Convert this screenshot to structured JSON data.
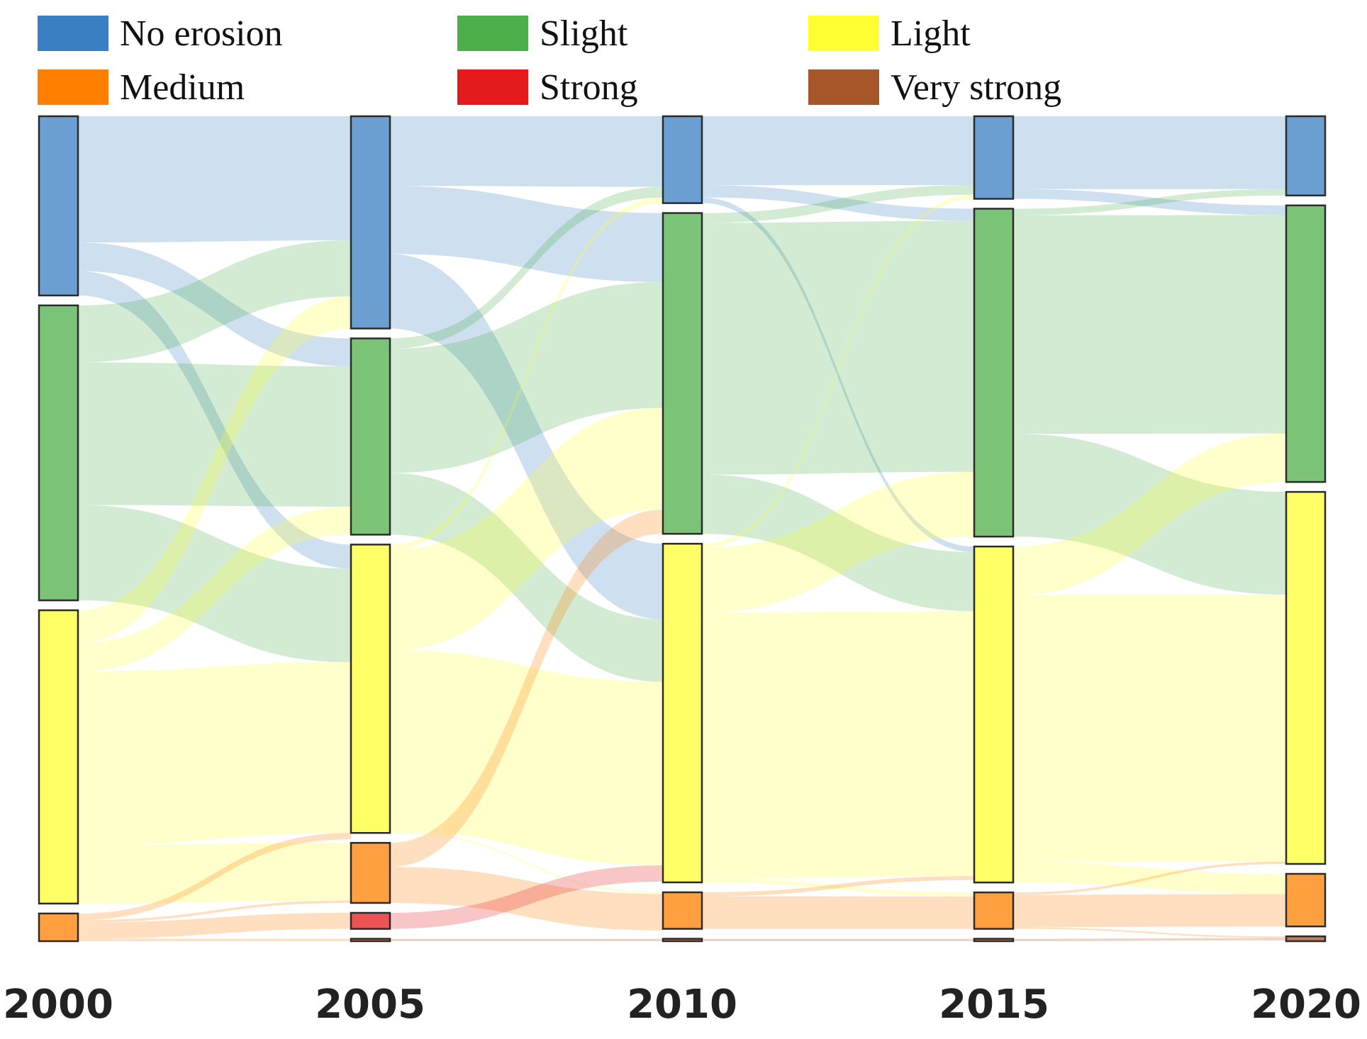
{
  "chart_data": {
    "type": "sankey",
    "title": "",
    "unit": "relative share (%)",
    "categories": [
      "No erosion",
      "Slight",
      "Light",
      "Medium",
      "Strong",
      "Very strong"
    ],
    "colors": {
      "No erosion": "#3a7fc1",
      "Slight": "#4daf4a",
      "Light": "#ffff33",
      "Medium": "#ff7f00",
      "Strong": "#e41a1c",
      "Very strong": "#a65628"
    },
    "years": [
      "2000",
      "2005",
      "2010",
      "2015",
      "2020"
    ],
    "nodes": [
      {
        "year": "2000",
        "values": {
          "No erosion": 22.0,
          "Slight": 36.2,
          "Light": 36.0,
          "Medium": 3.4,
          "Strong": 0.0,
          "Very strong": 0.0
        }
      },
      {
        "year": "2005",
        "values": {
          "No erosion": 26.5,
          "Slight": 24.5,
          "Light": 36.0,
          "Medium": 7.5,
          "Strong": 2.0,
          "Very strong": 0.3
        }
      },
      {
        "year": "2010",
        "values": {
          "No erosion": 10.7,
          "Slight": 39.5,
          "Light": 41.7,
          "Medium": 4.5,
          "Strong": 0.0,
          "Very strong": 0.3
        }
      },
      {
        "year": "2015",
        "values": {
          "No erosion": 10.2,
          "Slight": 40.5,
          "Light": 41.5,
          "Medium": 4.5,
          "Strong": 0.0,
          "Very strong": 0.3
        }
      },
      {
        "year": "2020",
        "values": {
          "No erosion": 9.8,
          "Slight": 34.2,
          "Light": 46.0,
          "Medium": 6.5,
          "Strong": 0.0,
          "Very strong": 0.6
        }
      }
    ],
    "flows": [
      [
        {
          "from": "No erosion",
          "to": "No erosion",
          "value": 15.5
        },
        {
          "from": "No erosion",
          "to": "Slight",
          "value": 3.5
        },
        {
          "from": "No erosion",
          "to": "Light",
          "value": 3.0
        },
        {
          "from": "Slight",
          "to": "No erosion",
          "value": 7.0
        },
        {
          "from": "Slight",
          "to": "Slight",
          "value": 17.5
        },
        {
          "from": "Slight",
          "to": "Light",
          "value": 11.7
        },
        {
          "from": "Light",
          "to": "No erosion",
          "value": 4.0
        },
        {
          "from": "Light",
          "to": "Slight",
          "value": 3.5
        },
        {
          "from": "Light",
          "to": "Light",
          "value": 21.3
        },
        {
          "from": "Light",
          "to": "Medium",
          "value": 7.2
        },
        {
          "from": "Medium",
          "to": "Medium",
          "value": 0.3
        },
        {
          "from": "Medium",
          "to": "Strong",
          "value": 2.0
        },
        {
          "from": "Medium",
          "to": "Light",
          "value": 0.8
        },
        {
          "from": "Medium",
          "to": "Very strong",
          "value": 0.3
        }
      ],
      [
        {
          "from": "No erosion",
          "to": "No erosion",
          "value": 8.7
        },
        {
          "from": "No erosion",
          "to": "Slight",
          "value": 8.5
        },
        {
          "from": "No erosion",
          "to": "Light",
          "value": 9.3
        },
        {
          "from": "Slight",
          "to": "No erosion",
          "value": 1.3
        },
        {
          "from": "Slight",
          "to": "Slight",
          "value": 15.5
        },
        {
          "from": "Slight",
          "to": "Light",
          "value": 7.7
        },
        {
          "from": "Light",
          "to": "No erosion",
          "value": 0.7
        },
        {
          "from": "Light",
          "to": "Slight",
          "value": 12.5
        },
        {
          "from": "Light",
          "to": "Light",
          "value": 22.6
        },
        {
          "from": "Light",
          "to": "Medium",
          "value": 0.2
        },
        {
          "from": "Medium",
          "to": "Slight",
          "value": 3.0
        },
        {
          "from": "Medium",
          "to": "Medium",
          "value": 4.5
        },
        {
          "from": "Strong",
          "to": "Light",
          "value": 2.0
        },
        {
          "from": "Very strong",
          "to": "Very strong",
          "value": 0.3
        }
      ],
      [
        {
          "from": "No erosion",
          "to": "No erosion",
          "value": 8.5
        },
        {
          "from": "No erosion",
          "to": "Slight",
          "value": 1.5
        },
        {
          "from": "No erosion",
          "to": "Light",
          "value": 0.7
        },
        {
          "from": "Slight",
          "to": "No erosion",
          "value": 1.2
        },
        {
          "from": "Slight",
          "to": "Slight",
          "value": 31.0
        },
        {
          "from": "Slight",
          "to": "Light",
          "value": 7.3
        },
        {
          "from": "Light",
          "to": "No erosion",
          "value": 0.5
        },
        {
          "from": "Light",
          "to": "Slight",
          "value": 8.0
        },
        {
          "from": "Light",
          "to": "Light",
          "value": 32.7
        },
        {
          "from": "Light",
          "to": "Medium",
          "value": 0.5
        },
        {
          "from": "Medium",
          "to": "Light",
          "value": 0.5
        },
        {
          "from": "Medium",
          "to": "Medium",
          "value": 4.0
        },
        {
          "from": "Very strong",
          "to": "Very strong",
          "value": 0.3
        }
      ],
      [
        {
          "from": "No erosion",
          "to": "No erosion",
          "value": 9.0
        },
        {
          "from": "No erosion",
          "to": "Slight",
          "value": 1.2
        },
        {
          "from": "Slight",
          "to": "No erosion",
          "value": 0.8
        },
        {
          "from": "Slight",
          "to": "Slight",
          "value": 27.0
        },
        {
          "from": "Slight",
          "to": "Light",
          "value": 12.7
        },
        {
          "from": "Light",
          "to": "Slight",
          "value": 6.0
        },
        {
          "from": "Light",
          "to": "Light",
          "value": 33.0
        },
        {
          "from": "Light",
          "to": "Medium",
          "value": 2.5
        },
        {
          "from": "Medium",
          "to": "Light",
          "value": 0.3
        },
        {
          "from": "Medium",
          "to": "Medium",
          "value": 4.0
        },
        {
          "from": "Medium",
          "to": "Very strong",
          "value": 0.2
        },
        {
          "from": "Very strong",
          "to": "Very strong",
          "value": 0.3
        }
      ]
    ]
  }
}
